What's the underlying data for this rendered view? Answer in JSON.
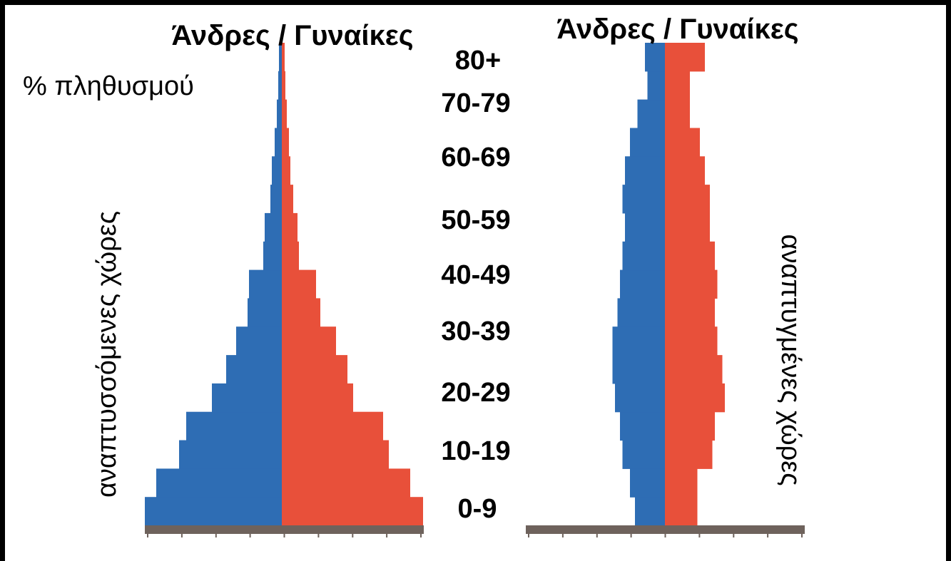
{
  "header": {
    "left_title": "Άνδρες / Γυναίκες",
    "right_title": "Άνδρες / Γυναίκες",
    "ylabel": "% πληθυσμού",
    "left_side_label": "αναπτυσσόμενες χώρες",
    "right_side_label": "αναπτυγμένες χώρες"
  },
  "age_groups": [
    "0-9",
    "10-19",
    "20-29",
    "30-39",
    "40-49",
    "50-59",
    "60-69",
    "70-79",
    "80+"
  ],
  "colors": {
    "men": "#2e6db4",
    "women": "#e8503a",
    "axis": "#6e625c"
  },
  "chart_data": [
    {
      "type": "bar",
      "orientation": "horizontal",
      "name_label": "αναπτυσσόμενες χώρες",
      "grouping": "population pyramid",
      "bars": 17,
      "series": [
        {
          "name": "Άνδρες",
          "values": [
            9.6,
            8.8,
            7.2,
            6.7,
            4.9,
            3.9,
            3.2,
            2.4,
            2.3,
            1.3,
            1.2,
            0.8,
            0.7,
            0.5,
            0.35,
            0.25,
            0.2
          ]
        },
        {
          "name": "Γυναίκες",
          "values": [
            9.9,
            9.0,
            7.5,
            7.1,
            5.0,
            4.6,
            3.8,
            2.7,
            2.4,
            1.2,
            1.1,
            0.8,
            0.6,
            0.5,
            0.35,
            0.25,
            0.2
          ]
        }
      ],
      "xlim": [
        -10,
        10
      ],
      "ticks": 9,
      "grid": false
    },
    {
      "type": "bar",
      "orientation": "horizontal",
      "name_label": "αναπτυγμένες χώρες",
      "grouping": "population pyramid",
      "bars": 17,
      "series": [
        {
          "name": "Άνδρες",
          "values": [
            1.2,
            1.4,
            1.7,
            1.8,
            2.0,
            2.1,
            2.1,
            1.9,
            1.8,
            1.7,
            1.6,
            1.7,
            1.6,
            1.4,
            1.1,
            0.7,
            0.8
          ]
        },
        {
          "name": "Γυναίκες",
          "values": [
            1.3,
            1.3,
            1.9,
            2.0,
            2.4,
            2.3,
            2.1,
            2.0,
            2.1,
            2.0,
            1.8,
            1.8,
            1.6,
            1.4,
            1.0,
            1.0,
            1.6
          ]
        }
      ],
      "xlim": [
        -6,
        6
      ],
      "ticks": 9,
      "grid": false
    }
  ]
}
